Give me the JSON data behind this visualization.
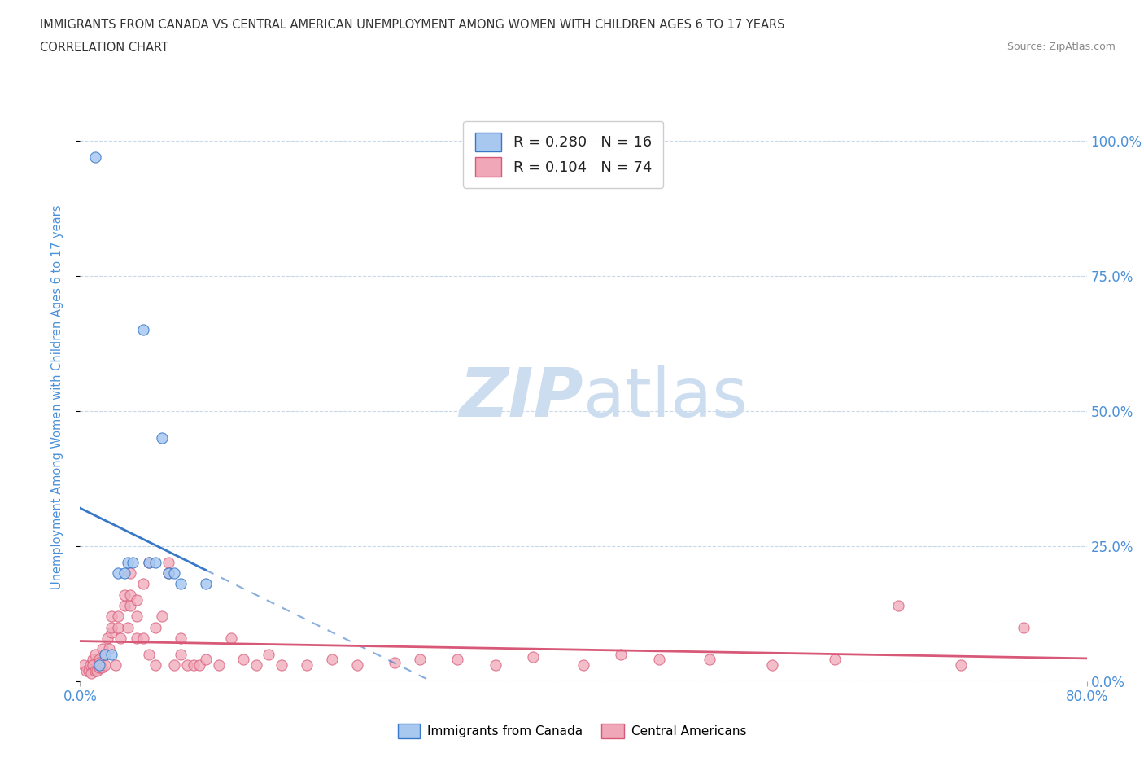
{
  "title_line1": "IMMIGRANTS FROM CANADA VS CENTRAL AMERICAN UNEMPLOYMENT AMONG WOMEN WITH CHILDREN AGES 6 TO 17 YEARS",
  "title_line2": "CORRELATION CHART",
  "source": "Source: ZipAtlas.com",
  "ylabel_label": "Unemployment Among Women with Children Ages 6 to 17 years",
  "legend_label1": "Immigrants from Canada",
  "legend_label2": "Central Americans",
  "r1": "0.280",
  "n1": "16",
  "r2": "0.104",
  "n2": "74",
  "color_canada": "#a8c8f0",
  "color_central": "#f0a8b8",
  "color_trendline_canada": "#3878c8",
  "color_trendline_central": "#d85878",
  "watermark_zip": "ZIP",
  "watermark_atlas": "atlas",
  "watermark_color": "#cdddf0",
  "background_color": "#ffffff",
  "grid_color": "#c8d8e8",
  "axis_label_color": "#4a90d9",
  "title_color": "#333333",
  "source_color": "#888888",
  "canada_x": [
    1.2,
    1.5,
    2.0,
    2.5,
    3.0,
    3.5,
    3.8,
    4.2,
    5.0,
    5.5,
    6.0,
    6.5,
    7.0,
    7.5,
    8.0,
    10.0
  ],
  "canada_y": [
    97.0,
    3.0,
    5.0,
    5.0,
    20.0,
    20.0,
    22.0,
    22.0,
    65.0,
    22.0,
    22.0,
    45.0,
    20.0,
    20.0,
    18.0,
    18.0
  ],
  "central_x": [
    0.3,
    0.5,
    0.7,
    0.8,
    0.9,
    1.0,
    1.0,
    1.2,
    1.2,
    1.3,
    1.5,
    1.5,
    1.5,
    1.7,
    1.8,
    2.0,
    2.0,
    2.2,
    2.3,
    2.5,
    2.5,
    2.5,
    2.8,
    3.0,
    3.0,
    3.2,
    3.5,
    3.5,
    3.8,
    4.0,
    4.0,
    4.0,
    4.5,
    4.5,
    4.5,
    5.0,
    5.0,
    5.5,
    5.5,
    6.0,
    6.0,
    6.5,
    7.0,
    7.0,
    7.5,
    8.0,
    8.0,
    8.5,
    9.0,
    9.5,
    10.0,
    11.0,
    12.0,
    13.0,
    14.0,
    15.0,
    16.0,
    18.0,
    20.0,
    22.0,
    25.0,
    27.0,
    30.0,
    33.0,
    36.0,
    40.0,
    43.0,
    46.0,
    50.0,
    55.0,
    60.0,
    65.0,
    70.0,
    75.0
  ],
  "central_y": [
    3.0,
    2.0,
    2.0,
    3.0,
    1.5,
    4.0,
    3.0,
    2.0,
    5.0,
    2.0,
    4.0,
    2.5,
    3.5,
    2.5,
    6.0,
    3.0,
    5.0,
    8.0,
    6.0,
    9.0,
    10.0,
    12.0,
    3.0,
    10.0,
    12.0,
    8.0,
    14.0,
    16.0,
    10.0,
    14.0,
    16.0,
    20.0,
    8.0,
    12.0,
    15.0,
    8.0,
    18.0,
    5.0,
    22.0,
    10.0,
    3.0,
    12.0,
    20.0,
    22.0,
    3.0,
    5.0,
    8.0,
    3.0,
    3.0,
    3.0,
    4.0,
    3.0,
    8.0,
    4.0,
    3.0,
    5.0,
    3.0,
    3.0,
    4.0,
    3.0,
    3.5,
    4.0,
    4.0,
    3.0,
    4.5,
    3.0,
    5.0,
    4.0,
    4.0,
    3.0,
    4.0,
    14.0,
    3.0,
    10.0
  ],
  "xmin": 0.0,
  "xmax": 80.0,
  "ymin": 0.0,
  "ymax": 105.0,
  "ytick_vals": [
    0.0,
    25.0,
    50.0,
    75.0,
    100.0
  ],
  "ytick_labels": [
    "0.0%",
    "25.0%",
    "50.0%",
    "75.0%",
    "100.0%"
  ],
  "xtick_vals": [
    0.0,
    80.0
  ],
  "xtick_labels": [
    "0.0%",
    "80.0%"
  ]
}
